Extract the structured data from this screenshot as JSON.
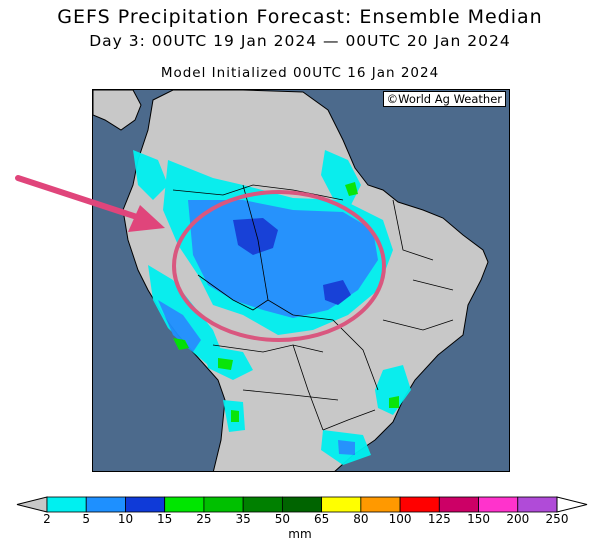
{
  "header": {
    "title": "GEFS Precipitation Forecast: Ensemble Median",
    "valid": "Day 3: 00UTC 19 Jan 2024 — 00UTC 20 Jan 2024",
    "init": "Model Initialized 00UTC 16 Jan 2024"
  },
  "map": {
    "region": "South America",
    "credit": "©World Ag Weather",
    "colors": {
      "ocean": "#4c6a8c",
      "land": "#c8c8c8",
      "borders": "#000000"
    },
    "annotations": {
      "arrow_color": "#e0457b",
      "ellipse_color": "#d9577f"
    }
  },
  "colorbar": {
    "unit": "mm",
    "ticks": [
      "2",
      "5",
      "10",
      "15",
      "25",
      "35",
      "50",
      "65",
      "80",
      "100",
      "125",
      "150",
      "200",
      "250"
    ],
    "colors": [
      "#00f0f0",
      "#1e90ff",
      "#0f3ad8",
      "#00e600",
      "#00c000",
      "#008000",
      "#006400",
      "#ffff00",
      "#ff9900",
      "#ff0000",
      "#cc0066",
      "#ff33cc",
      "#b04bd8"
    ],
    "below_color": "#c8c8c8",
    "above_color": "#ffffff"
  }
}
